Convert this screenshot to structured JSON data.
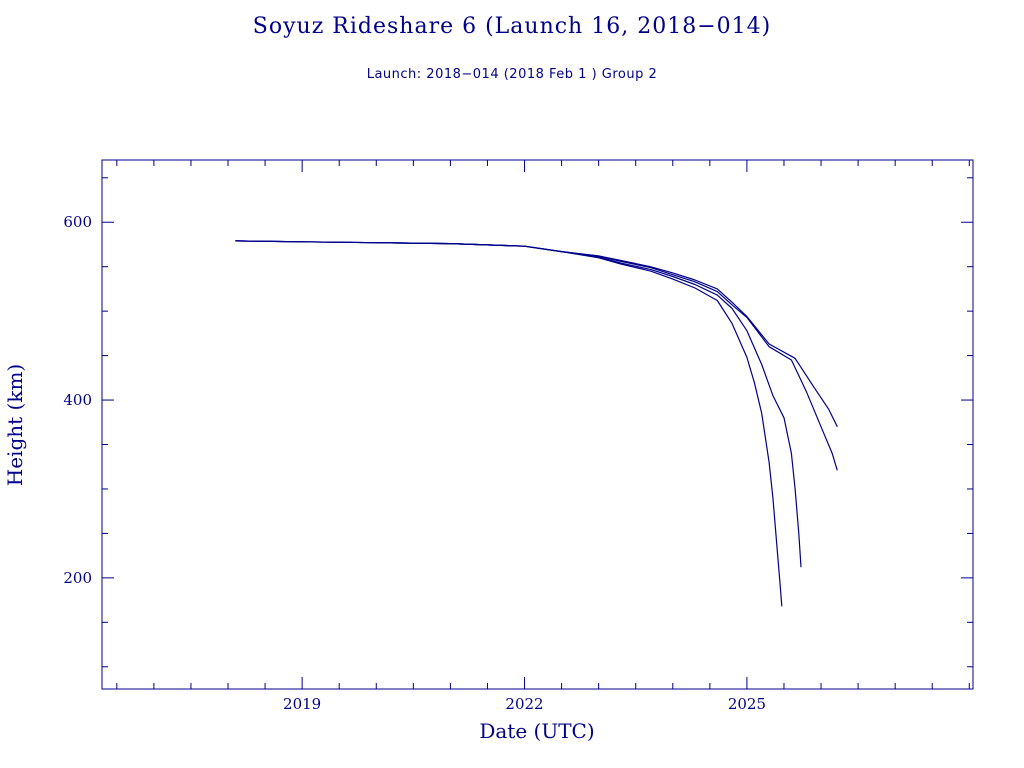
{
  "colors": {
    "ink": "#00008b",
    "background": "#ffffff"
  },
  "chart_data": {
    "type": "line",
    "title": "Soyuz Rideshare 6 (Launch 16, 2018−014)",
    "subtitle": "Launch: 2018−014  (2018 Feb  1 )  Group 2",
    "xlabel": "Date (UTC)",
    "ylabel": "Height (km)",
    "xlim": [
      2016.3,
      2028.05
    ],
    "ylim": [
      75,
      670
    ],
    "x_ticks": [
      {
        "value": 2019,
        "label": "2019"
      },
      {
        "value": 2022,
        "label": "2022"
      },
      {
        "value": 2025,
        "label": "2025"
      }
    ],
    "y_ticks": [
      {
        "value": 200,
        "label": "200"
      },
      {
        "value": 400,
        "label": "400"
      },
      {
        "value": 600,
        "label": "600"
      }
    ],
    "x_minor_step": 0.5,
    "y_minor_step": 50,
    "grid": false,
    "series": [
      {
        "x": [
          2018.1,
          2019.0,
          2020.0,
          2021.0,
          2022.0,
          2022.5,
          2023.0,
          2023.3,
          2023.7,
          2024.0,
          2024.3,
          2024.6,
          2024.8,
          2025.0,
          2025.1,
          2025.2,
          2025.3,
          2025.35,
          2025.4,
          2025.45,
          2025.47
        ],
        "y": [
          579,
          578,
          577,
          576,
          573,
          567,
          560,
          553,
          545,
          536,
          526,
          512,
          486,
          448,
          420,
          385,
          330,
          290,
          240,
          190,
          168
        ]
      },
      {
        "x": [
          2018.1,
          2019.0,
          2020.0,
          2021.0,
          2022.0,
          2022.5,
          2023.0,
          2023.3,
          2023.7,
          2024.0,
          2024.3,
          2024.6,
          2024.8,
          2025.0,
          2025.2,
          2025.35,
          2025.5,
          2025.6,
          2025.65,
          2025.7,
          2025.73
        ],
        "y": [
          579,
          578,
          577,
          576,
          573,
          567,
          561,
          554,
          547,
          539,
          530,
          518,
          503,
          478,
          440,
          405,
          380,
          340,
          300,
          250,
          212
        ]
      },
      {
        "x": [
          2018.1,
          2019.0,
          2020.0,
          2021.0,
          2022.0,
          2022.5,
          2023.0,
          2023.3,
          2023.7,
          2024.0,
          2024.3,
          2024.6,
          2024.8,
          2025.0,
          2025.3,
          2025.6,
          2025.8,
          2026.0,
          2026.15,
          2026.22
        ],
        "y": [
          579,
          578,
          577,
          576,
          573,
          567,
          562,
          556,
          549,
          541,
          533,
          522,
          507,
          493,
          460,
          445,
          410,
          370,
          340,
          321
        ]
      },
      {
        "x": [
          2018.1,
          2019.0,
          2020.0,
          2021.0,
          2022.0,
          2022.5,
          2023.0,
          2023.3,
          2023.7,
          2024.0,
          2024.3,
          2024.6,
          2024.8,
          2025.0,
          2025.3,
          2025.65,
          2025.9,
          2026.1,
          2026.22
        ],
        "y": [
          579,
          578,
          577,
          576,
          573,
          567,
          562,
          557,
          550,
          543,
          535,
          525,
          510,
          494,
          463,
          447,
          415,
          390,
          370
        ]
      }
    ]
  }
}
